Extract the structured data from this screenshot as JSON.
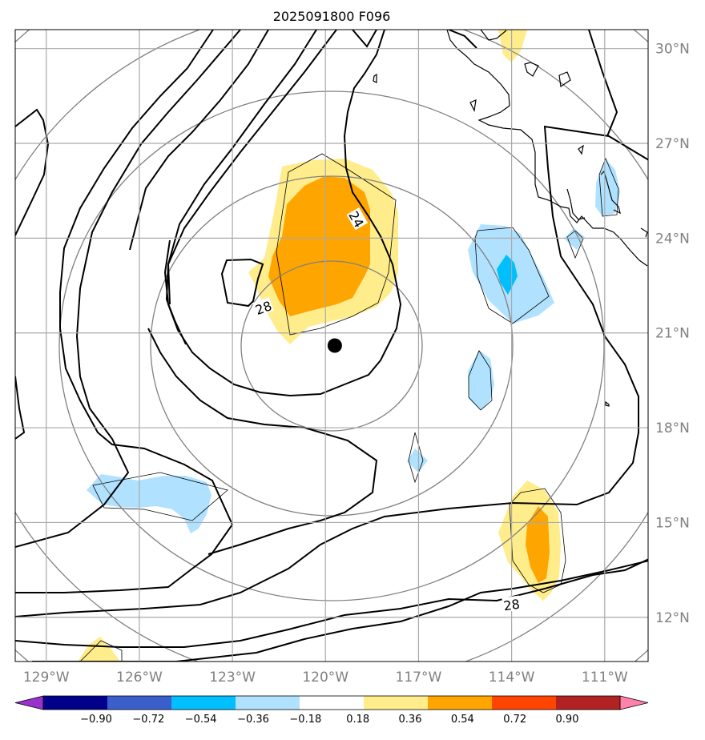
{
  "chart_data": {
    "type": "contour-map",
    "title": "2025091800 F096",
    "lon_range": [
      -130,
      -109.6
    ],
    "lat_range": [
      10.6,
      30.6
    ],
    "x_ticks": [
      -129,
      -126,
      -123,
      -120,
      -117,
      -114,
      -111
    ],
    "x_tick_labels": [
      "129°W",
      "126°W",
      "123°W",
      "120°W",
      "117°W",
      "114°W",
      "111°W"
    ],
    "y_ticks": [
      12,
      15,
      18,
      21,
      24,
      27,
      30
    ],
    "y_tick_labels": [
      "12°N",
      "15°N",
      "18°N",
      "21°N",
      "24°N",
      "27°N",
      "30°N"
    ],
    "grid": true,
    "center_marker": {
      "lon": -119.7,
      "lat": 20.6
    },
    "range_rings_deg": [
      2.5,
      5,
      7.5,
      10,
      12.5
    ],
    "contour_labels": [
      {
        "text": "24",
        "lon": -119.0,
        "lat": 24.6,
        "rotation": 60
      },
      {
        "text": "28",
        "lon": -122.0,
        "lat": 21.8,
        "rotation": -20
      },
      {
        "text": "28",
        "lon": -114.0,
        "lat": 12.4,
        "rotation": -8
      }
    ],
    "colorbar": {
      "boundaries": [
        -0.9,
        -0.72,
        -0.54,
        -0.36,
        -0.18,
        0.18,
        0.36,
        0.54,
        0.72,
        0.9
      ],
      "labels": [
        "−0.90",
        "−0.72",
        "−0.54",
        "−0.36",
        "−0.18",
        "0.18",
        "0.36",
        "0.54",
        "0.72",
        "0.90"
      ],
      "colors": [
        "#9932cc",
        "#00008b",
        "#3a5fcd",
        "#00bfff",
        "#b0e2ff",
        "#ffffff",
        "#ffec8b",
        "#ffa500",
        "#ff4500",
        "#b22222",
        "#ff82ab"
      ],
      "extend": "both"
    },
    "colors": {
      "positive_light": "#ffec8b",
      "positive_mid": "#ffa500",
      "negative_light": "#b0e2ff",
      "negative_mid": "#00bfff"
    }
  }
}
